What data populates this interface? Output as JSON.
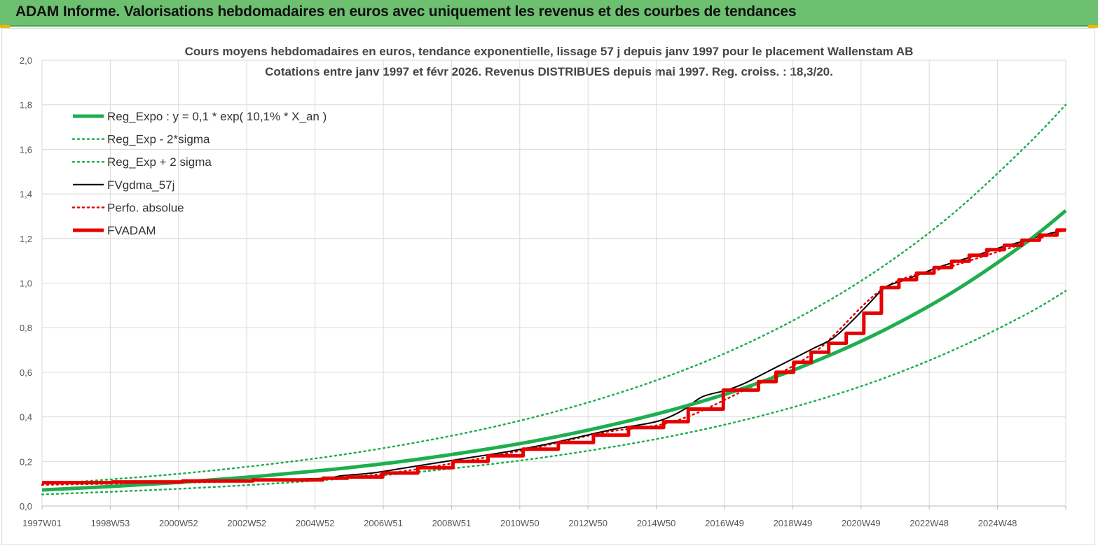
{
  "header": {
    "title": "ADAM Informe. Valorisations hebdomadaires en euros avec uniquement les revenus et des courbes de tendances"
  },
  "colors": {
    "header_bg": "#6cc070",
    "reg_green": "#1fae4f",
    "adam_red": "#e60000",
    "gdma_black": "#000000",
    "grid": "#d9d9d9"
  },
  "chart_data": {
    "type": "line",
    "title": "Cours moyens hebdomadaires en euros, tendance exponentielle, lissage 57 j depuis janv 1997 pour le placement Wallenstam AB",
    "subtitle": "Cotations entre janv 1997 et févr 2026. Revenus DISTRIBUES depuis mai 1997. Reg. croiss. : 18,3/20.",
    "x_tick_labels": [
      "1997W01",
      "1998W53",
      "2000W52",
      "2002W52",
      "2004W52",
      "2006W51",
      "2008W51",
      "2010W50",
      "2012W50",
      "2014W50",
      "2016W49",
      "2018W49",
      "2020W49",
      "2022W48",
      "2024W48"
    ],
    "x_range": [
      1997.0,
      2026.15
    ],
    "ylim": [
      0,
      2.0
    ],
    "y_tick_labels": [
      "0,0",
      "0,2",
      "0,4",
      "0,6",
      "0,8",
      "1,0",
      "1,2",
      "1,4",
      "1,6",
      "1,8",
      "2,0"
    ],
    "y_ticks": [
      0,
      0.2,
      0.4,
      0.6,
      0.8,
      1.0,
      1.2,
      1.4,
      1.6,
      1.8,
      2.0
    ],
    "grid": true,
    "legend_position": "top-left",
    "series": [
      {
        "name": "Reg_Expo : y = 0,1 * exp( 10,1% *  X_an )",
        "style": "solid-thick",
        "color": "#1fae4f",
        "x": [
          1997.0,
          1999.0,
          2001.0,
          2003.0,
          2005.0,
          2007.0,
          2009.0,
          2011.0,
          2013.0,
          2015.0,
          2017.0,
          2019.0,
          2021.0,
          2023.0,
          2025.0,
          2026.15
        ],
        "y": [
          0.072,
          0.088,
          0.107,
          0.131,
          0.16,
          0.195,
          0.239,
          0.291,
          0.356,
          0.434,
          0.53,
          0.648,
          0.791,
          0.966,
          1.18,
          1.325
        ]
      },
      {
        "name": "Reg_Exp - 2*sigma",
        "style": "dotted",
        "color": "#1fae4f",
        "x": [
          1997.0,
          1999.0,
          2001.0,
          2003.0,
          2005.0,
          2007.0,
          2009.0,
          2011.0,
          2013.0,
          2015.0,
          2017.0,
          2019.0,
          2021.0,
          2023.0,
          2025.0,
          2026.15
        ],
        "y": [
          0.052,
          0.064,
          0.078,
          0.095,
          0.116,
          0.142,
          0.174,
          0.212,
          0.259,
          0.316,
          0.386,
          0.471,
          0.575,
          0.703,
          0.858,
          0.965
        ]
      },
      {
        "name": "Reg_Exp + 2 sigma",
        "style": "dotted",
        "color": "#1fae4f",
        "x": [
          1997.0,
          1999.0,
          2001.0,
          2003.0,
          2005.0,
          2007.0,
          2009.0,
          2011.0,
          2013.0,
          2015.0,
          2017.0,
          2019.0,
          2021.0,
          2023.0,
          2025.0,
          2026.15
        ],
        "y": [
          0.098,
          0.12,
          0.146,
          0.179,
          0.218,
          0.267,
          0.326,
          0.398,
          0.486,
          0.593,
          0.724,
          0.885,
          1.081,
          1.32,
          1.612,
          1.8
        ]
      },
      {
        "name": "FVgdma_57j",
        "style": "solid-thin",
        "color": "#000000",
        "x": [
          1997.0,
          1999.0,
          2001.0,
          2003.0,
          2005.0,
          2005.5,
          2006.5,
          2007.3,
          2008.3,
          2009.3,
          2010.3,
          2011.3,
          2012.3,
          2013.3,
          2014.3,
          2014.8,
          2015.3,
          2015.8,
          2016.5,
          2017.0,
          2017.5,
          2018.0,
          2018.5,
          2019.0,
          2019.5,
          2020.0,
          2020.5,
          2021.0,
          2021.5,
          2022.0,
          2022.5,
          2023.0,
          2023.5,
          2024.0,
          2024.5,
          2025.0,
          2025.5,
          2026.15
        ],
        "y": [
          0.105,
          0.108,
          0.11,
          0.117,
          0.124,
          0.135,
          0.15,
          0.17,
          0.195,
          0.22,
          0.245,
          0.275,
          0.31,
          0.345,
          0.372,
          0.395,
          0.435,
          0.49,
          0.52,
          0.55,
          0.59,
          0.63,
          0.67,
          0.71,
          0.75,
          0.82,
          0.9,
          0.98,
          1.01,
          1.04,
          1.07,
          1.095,
          1.12,
          1.145,
          1.17,
          1.19,
          1.215,
          1.24
        ]
      },
      {
        "name": "Perfo. absolue",
        "style": "dotted",
        "color": "#e60000",
        "x": [
          1997.0,
          1999.0,
          2001.0,
          2003.0,
          2005.0,
          2007.0,
          2009.0,
          2011.0,
          2013.0,
          2015.0,
          2017.0,
          2019.0,
          2021.0,
          2023.0,
          2025.0,
          2026.15
        ],
        "y": [
          0.095,
          0.1,
          0.105,
          0.112,
          0.12,
          0.15,
          0.2,
          0.26,
          0.33,
          0.38,
          0.52,
          0.69,
          0.98,
          1.08,
          1.18,
          1.24
        ]
      },
      {
        "name": "FVADAM",
        "style": "solid-thick",
        "color": "#e60000",
        "steps": [
          [
            1997.0,
            0.105
          ],
          [
            1999.0,
            0.108
          ],
          [
            2001.0,
            0.112
          ],
          [
            2003.0,
            0.117
          ],
          [
            2005.0,
            0.125
          ],
          [
            2005.7,
            0.13
          ],
          [
            2006.7,
            0.148
          ],
          [
            2007.7,
            0.172
          ],
          [
            2008.7,
            0.2
          ],
          [
            2009.7,
            0.225
          ],
          [
            2010.7,
            0.255
          ],
          [
            2011.7,
            0.285
          ],
          [
            2012.7,
            0.318
          ],
          [
            2013.7,
            0.352
          ],
          [
            2014.7,
            0.378
          ],
          [
            2015.4,
            0.435
          ],
          [
            2016.4,
            0.52
          ],
          [
            2017.4,
            0.558
          ],
          [
            2017.9,
            0.6
          ],
          [
            2018.4,
            0.645
          ],
          [
            2018.9,
            0.69
          ],
          [
            2019.4,
            0.73
          ],
          [
            2019.9,
            0.775
          ],
          [
            2020.4,
            0.865
          ],
          [
            2020.9,
            0.98
          ],
          [
            2021.4,
            1.015
          ],
          [
            2021.9,
            1.045
          ],
          [
            2022.4,
            1.07
          ],
          [
            2022.9,
            1.098
          ],
          [
            2023.4,
            1.125
          ],
          [
            2023.9,
            1.15
          ],
          [
            2024.4,
            1.17
          ],
          [
            2024.9,
            1.192
          ],
          [
            2025.4,
            1.215
          ],
          [
            2025.9,
            1.238
          ]
        ],
        "x_end": 2026.15
      }
    ]
  }
}
